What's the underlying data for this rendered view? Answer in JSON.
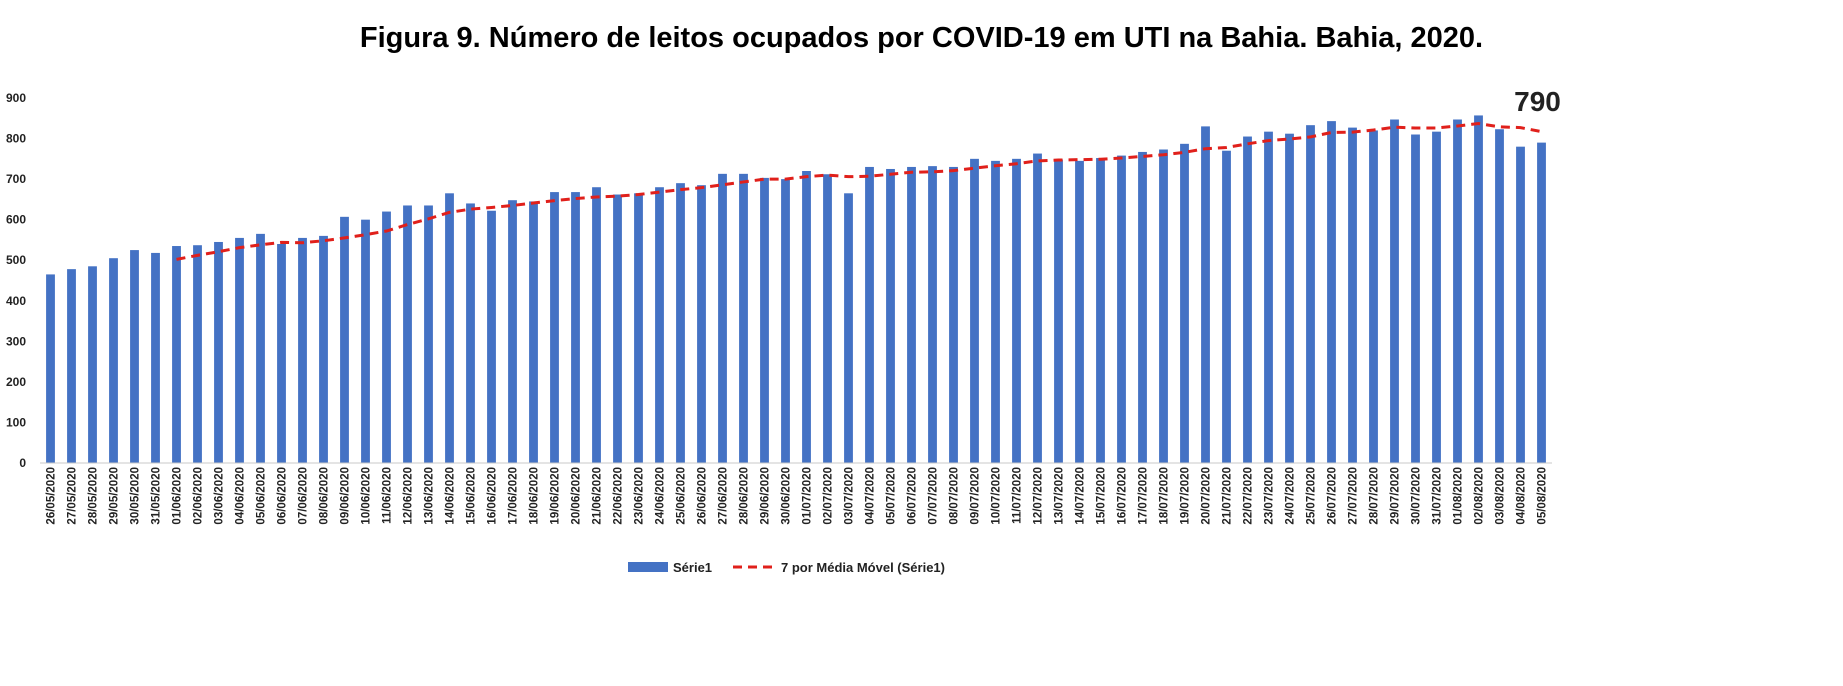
{
  "chart_data": {
    "type": "bar",
    "title": "Figura 9. Número de leitos ocupados por COVID-19 em UTI na Bahia. Bahia, 2020.",
    "xlabel": "",
    "ylabel": "",
    "ylim": [
      0,
      900
    ],
    "yticks": [
      "0",
      "100",
      "200",
      "300",
      "400",
      "500",
      "600",
      "700",
      "800",
      "900"
    ],
    "grid": false,
    "legend_position": "bottom",
    "categories": [
      "26/05/2020",
      "27/05/2020",
      "28/05/2020",
      "29/05/2020",
      "30/05/2020",
      "31/05/2020",
      "01/06/2020",
      "02/06/2020",
      "03/06/2020",
      "04/06/2020",
      "05/06/2020",
      "06/06/2020",
      "07/06/2020",
      "08/06/2020",
      "09/06/2020",
      "10/06/2020",
      "11/06/2020",
      "12/06/2020",
      "13/06/2020",
      "14/06/2020",
      "15/06/2020",
      "16/06/2020",
      "17/06/2020",
      "18/06/2020",
      "19/06/2020",
      "20/06/2020",
      "21/06/2020",
      "22/06/2020",
      "23/06/2020",
      "24/06/2020",
      "25/06/2020",
      "26/06/2020",
      "27/06/2020",
      "28/06/2020",
      "29/06/2020",
      "30/06/2020",
      "01/07/2020",
      "02/07/2020",
      "03/07/2020",
      "04/07/2020",
      "05/07/2020",
      "06/07/2020",
      "07/07/2020",
      "08/07/2020",
      "09/07/2020",
      "10/07/2020",
      "11/07/2020",
      "12/07/2020",
      "13/07/2020",
      "14/07/2020",
      "15/07/2020",
      "16/07/2020",
      "17/07/2020",
      "18/07/2020",
      "19/07/2020",
      "20/07/2020",
      "21/07/2020",
      "22/07/2020",
      "23/07/2020",
      "24/07/2020",
      "25/07/2020",
      "26/07/2020",
      "27/07/2020",
      "28/07/2020",
      "29/07/2020",
      "30/07/2020",
      "31/07/2020",
      "01/08/2020",
      "02/08/2020",
      "03/08/2020",
      "04/08/2020",
      "05/08/2020"
    ],
    "series": [
      {
        "name": "Série1",
        "kind": "bar",
        "color": "#4472C4",
        "values": [
          465,
          478,
          485,
          505,
          525,
          518,
          535,
          537,
          545,
          555,
          565,
          540,
          555,
          560,
          607,
          600,
          620,
          635,
          635,
          665,
          640,
          622,
          648,
          645,
          668,
          668,
          680,
          662,
          665,
          680,
          690,
          685,
          713,
          713,
          703,
          700,
          720,
          712,
          665,
          730,
          725,
          730,
          732,
          730,
          750,
          745,
          750,
          763,
          748,
          745,
          752,
          758,
          767,
          773,
          787,
          830,
          770,
          805,
          817,
          812,
          833,
          843,
          827,
          820,
          847,
          810,
          817,
          847,
          857,
          823,
          780,
          790
        ]
      },
      {
        "name": "7 por Média Móvel (Série1)",
        "kind": "line",
        "color": "#E0201B",
        "style": "dashed",
        "values": [
          null,
          null,
          null,
          null,
          null,
          null,
          502,
          512,
          521,
          531,
          538,
          544,
          543,
          548,
          555,
          563,
          572,
          588,
          602,
          618,
          626,
          630,
          635,
          641,
          647,
          652,
          656,
          658,
          662,
          668,
          674,
          679,
          686,
          693,
          700,
          700,
          706,
          710,
          706,
          707,
          712,
          717,
          718,
          721,
          727,
          733,
          738,
          745,
          747,
          748,
          749,
          752,
          756,
          760,
          766,
          775,
          778,
          787,
          795,
          799,
          804,
          815,
          816,
          821,
          828,
          826,
          826,
          831,
          837,
          829,
          827,
          817
        ]
      }
    ],
    "annotations": [
      {
        "text": "790",
        "category": "05/08/2020"
      }
    ]
  }
}
